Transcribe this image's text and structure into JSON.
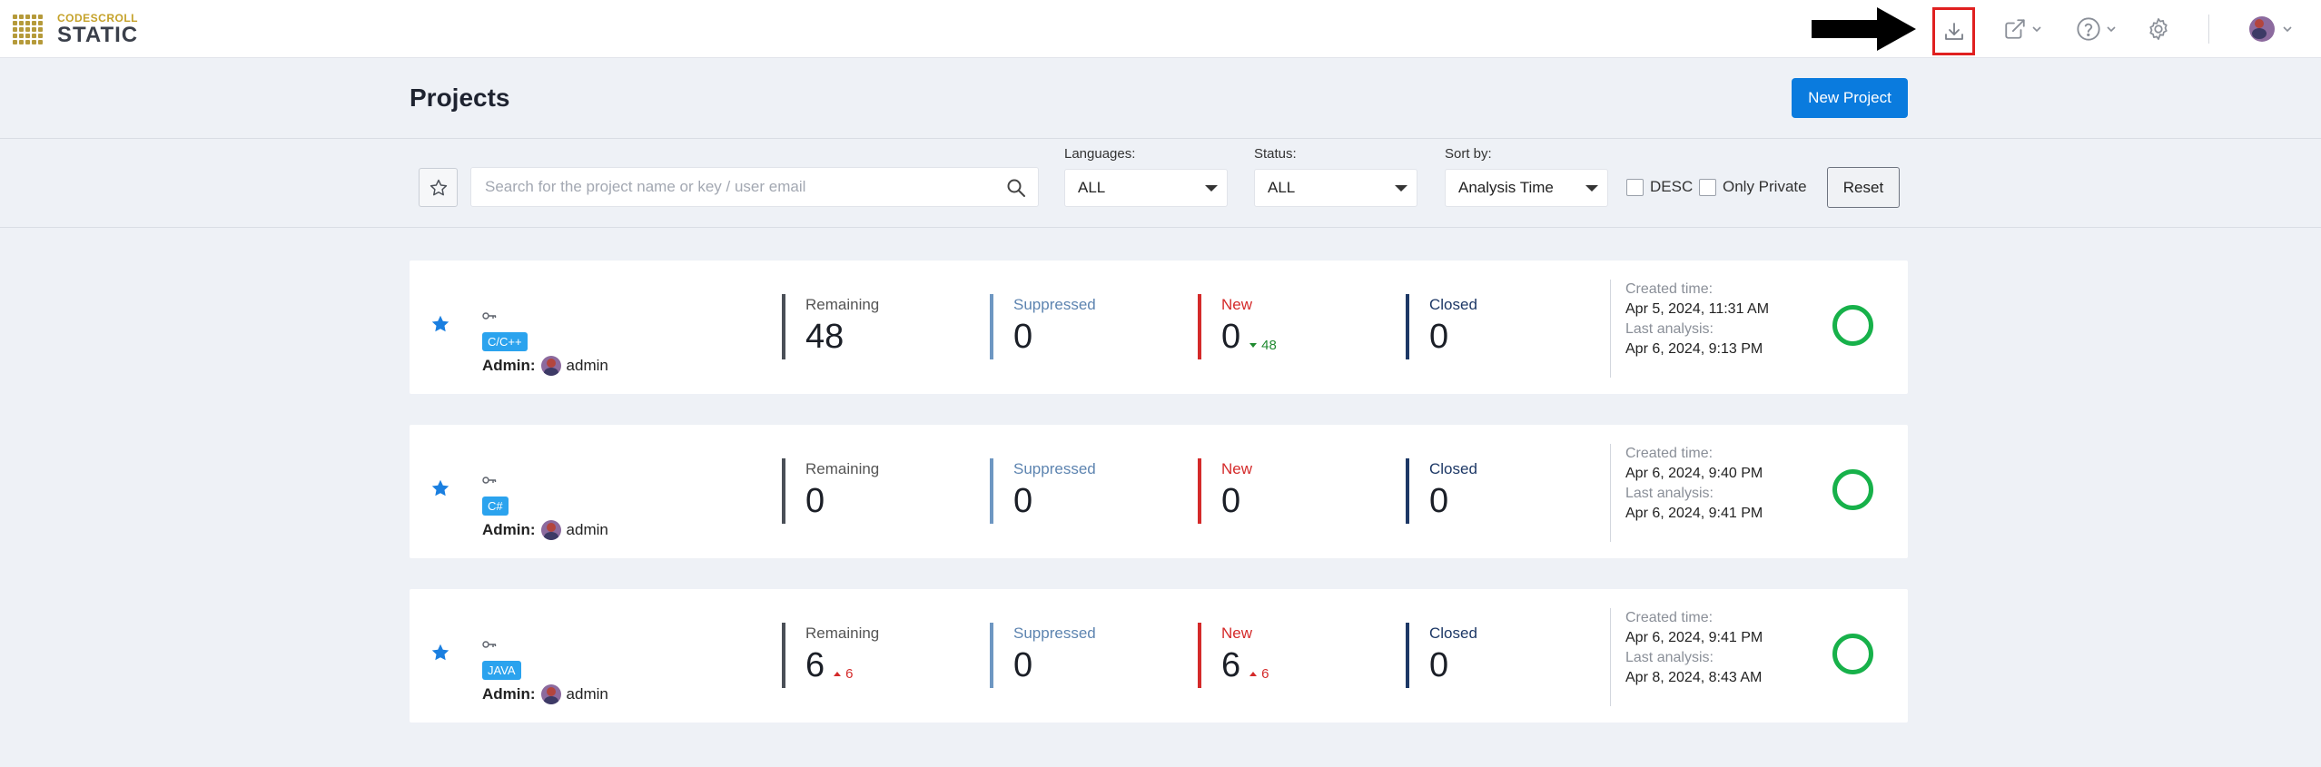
{
  "brand": {
    "small": "CODESCROLL",
    "big": "STATIC"
  },
  "colors": {
    "accent": "#0a7bde",
    "language_badge": "#2ba3ee",
    "status_ok": "#17b14a",
    "new_red": "#d42a2a",
    "highlight_box": "#e02020"
  },
  "header": {
    "title": "Projects",
    "new_project_label": "New Project"
  },
  "filters": {
    "search_placeholder": "Search for the project name or key / user email",
    "languages": {
      "label": "Languages:",
      "value": "ALL"
    },
    "status": {
      "label": "Status:",
      "value": "ALL"
    },
    "sort": {
      "label": "Sort by:",
      "value": "Analysis Time"
    },
    "desc_label": "DESC",
    "only_private_label": "Only Private",
    "reset_label": "Reset"
  },
  "metric_labels": {
    "remaining": "Remaining",
    "suppressed": "Suppressed",
    "new": "New",
    "closed": "Closed"
  },
  "time_labels": {
    "created": "Created time:",
    "last": "Last analysis:"
  },
  "projects": [
    {
      "language": "C/C++",
      "admin_label": "Admin:",
      "admin_name": "admin",
      "remaining": "48",
      "suppressed": "0",
      "new": "0",
      "new_delta": "48",
      "closed": "0",
      "created": "Apr 5, 2024, 11:31 AM",
      "last_analysis": "Apr 6, 2024, 9:13 PM"
    },
    {
      "language": "C#",
      "admin_label": "Admin:",
      "admin_name": "admin",
      "remaining": "0",
      "suppressed": "0",
      "new": "0",
      "closed": "0",
      "created": "Apr 6, 2024, 9:40 PM",
      "last_analysis": "Apr 6, 2024, 9:41 PM"
    },
    {
      "language": "JAVA",
      "admin_label": "Admin:",
      "admin_name": "admin",
      "remaining": "6",
      "remaining_delta": "6",
      "suppressed": "0",
      "new": "6",
      "new_delta": "6",
      "closed": "0",
      "created": "Apr 6, 2024, 9:41 PM",
      "last_analysis": "Apr 8, 2024, 8:43 AM"
    }
  ],
  "icons": [
    "logo-grid-icon",
    "arrow-annotation-icon",
    "download-icon",
    "external-link-icon",
    "help-icon",
    "settings-icon",
    "user-avatar",
    "star-icon",
    "search-icon",
    "key-icon",
    "status-ring-icon"
  ]
}
